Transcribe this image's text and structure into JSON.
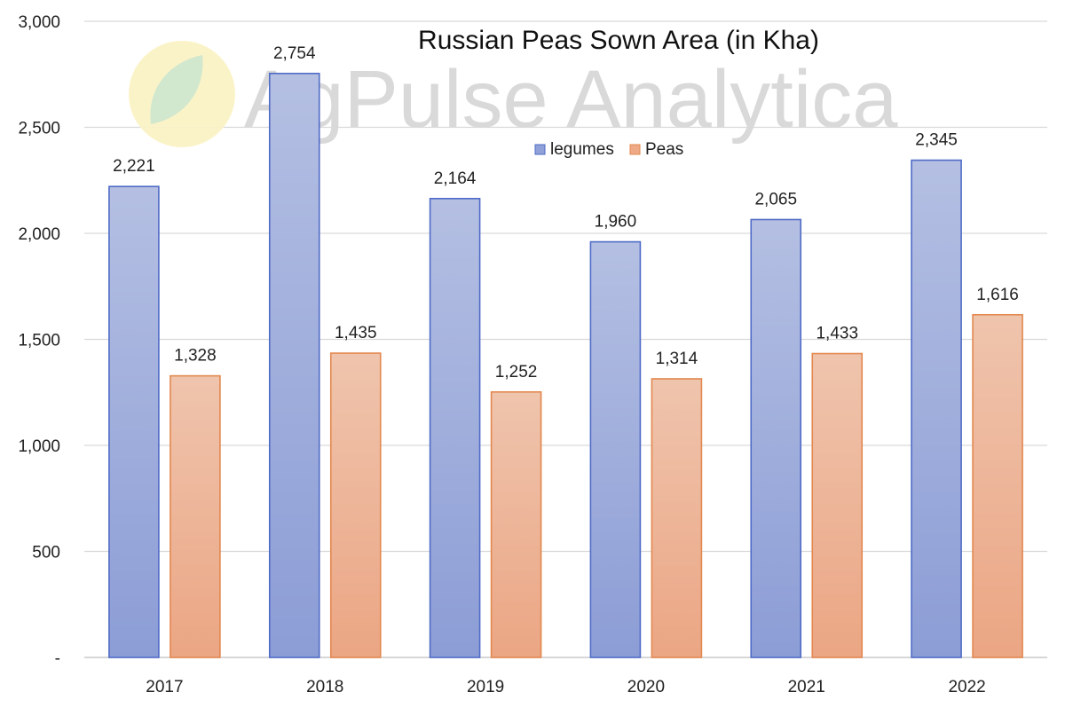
{
  "watermark": {
    "text": "AgPulse Analytica"
  },
  "chart_data": {
    "type": "bar",
    "title": "Russian Peas Sown Area (in Kha)",
    "xlabel": "",
    "ylabel": "",
    "categories": [
      "2017",
      "2018",
      "2019",
      "2020",
      "2021",
      "2022"
    ],
    "series": [
      {
        "name": "legumes",
        "values": [
          2221,
          2754,
          2164,
          1960,
          2065,
          2345
        ],
        "labels": [
          "2,221",
          "2,754",
          "2,164",
          "1,960",
          "2,065",
          "2,345"
        ],
        "color": "#8fa1d8",
        "edge": "#4f6bc6"
      },
      {
        "name": "Peas",
        "values": [
          1328,
          1435,
          1252,
          1314,
          1433,
          1616
        ],
        "labels": [
          "1,328",
          "1,435",
          "1,252",
          "1,314",
          "1,433",
          "1,616"
        ],
        "color": "#eeaa86",
        "edge": "#e3884f"
      }
    ],
    "ylim": [
      0,
      3000
    ],
    "yticks": [
      0,
      500,
      1000,
      1500,
      2000,
      2500,
      3000
    ],
    "ytick_labels": [
      "-",
      "500",
      "1,000",
      "1,500",
      "2,000",
      "2,500",
      "3,000"
    ],
    "grid": true,
    "legend_position": "top-center"
  }
}
